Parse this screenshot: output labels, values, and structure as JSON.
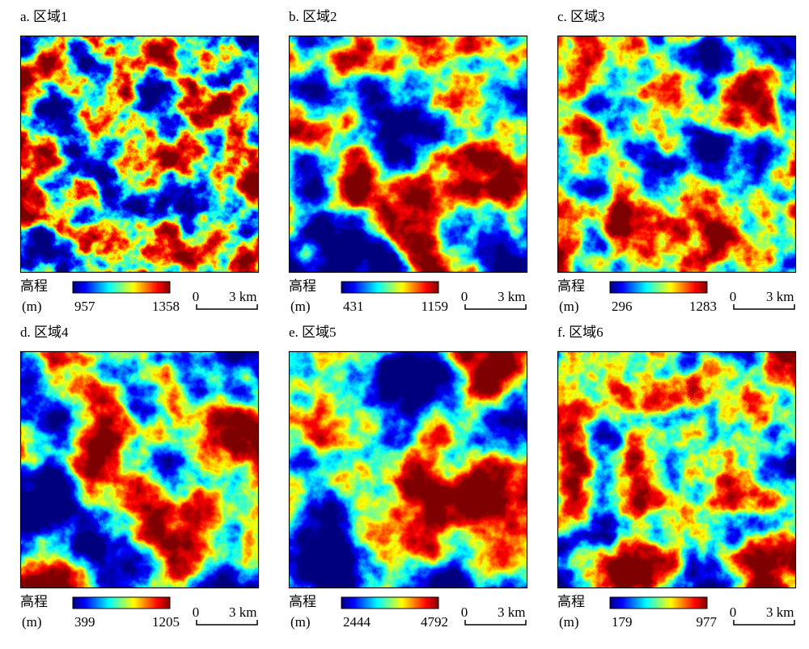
{
  "panels": [
    {
      "label": "a. 区域1",
      "legend_title": "高程",
      "unit": "(m)",
      "min": 957,
      "max": 1358,
      "scale_start": 0,
      "scale_label": "3 km"
    },
    {
      "label": "b. 区域2",
      "legend_title": "高程",
      "unit": "(m)",
      "min": 431,
      "max": 1159,
      "scale_start": 0,
      "scale_label": "3 km"
    },
    {
      "label": "c. 区域3",
      "legend_title": "高程",
      "unit": "(m)",
      "min": 296,
      "max": 1283,
      "scale_start": 0,
      "scale_label": "3 km"
    },
    {
      "label": "d. 区域4",
      "legend_title": "高程",
      "unit": "(m)",
      "min": 399,
      "max": 1205,
      "scale_start": 0,
      "scale_label": "3 km"
    },
    {
      "label": "e. 区域5",
      "legend_title": "高程",
      "unit": "(m)",
      "min": 2444,
      "max": 4792,
      "scale_start": 0,
      "scale_label": "3 km"
    },
    {
      "label": "f. 区域6",
      "legend_title": "高程",
      "unit": "(m)",
      "min": 179,
      "max": 977,
      "scale_start": 0,
      "scale_label": "3 km"
    }
  ]
}
